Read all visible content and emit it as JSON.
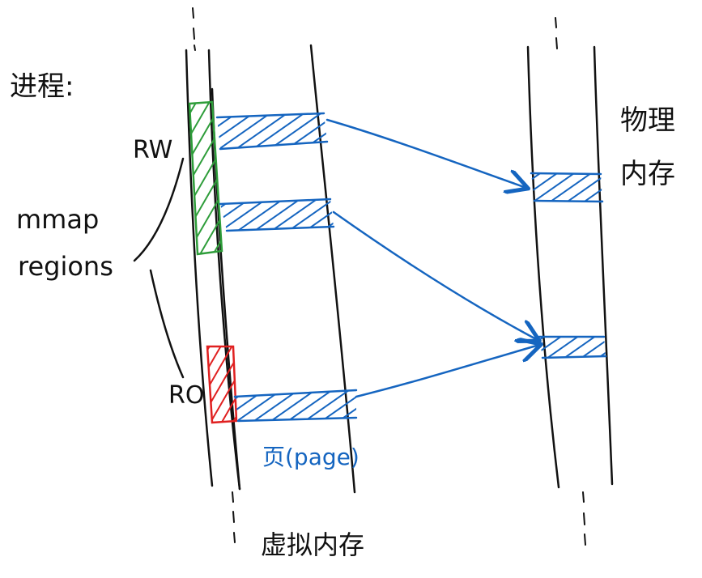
{
  "labels": {
    "process": "进程:",
    "rw": "RW",
    "ro": "RO",
    "mmap_line1": "mmap",
    "mmap_line2": "regions",
    "virtual_memory": "虚拟内存",
    "physical_memory_line1": "物理",
    "physical_memory_line2": "内存",
    "page": "页(page)"
  },
  "colors": {
    "ink": "#111111",
    "page_blue": "#1565c0",
    "rw_green": "#2e9d3a",
    "ro_red": "#e02020"
  }
}
